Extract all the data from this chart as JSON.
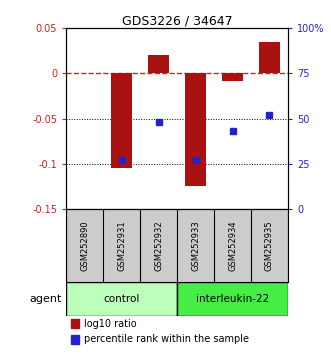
{
  "title": "GDS3226 / 34647",
  "samples": [
    "GSM252890",
    "GSM252931",
    "GSM252932",
    "GSM252933",
    "GSM252934",
    "GSM252935"
  ],
  "log10_ratio": [
    0.0,
    -0.105,
    0.02,
    -0.125,
    -0.008,
    0.035
  ],
  "percentile_rank": [
    null,
    27.0,
    48.0,
    27.0,
    43.0,
    52.0
  ],
  "ylim_left": [
    -0.15,
    0.05
  ],
  "ylim_right": [
    0,
    100
  ],
  "yticks_left": [
    -0.15,
    -0.1,
    -0.05,
    0.0,
    0.05
  ],
  "yticks_right": [
    0,
    25,
    50,
    75,
    100
  ],
  "ytick_labels_left": [
    "-0.15",
    "-0.1",
    "-0.05",
    "0",
    "0.05"
  ],
  "ytick_labels_right": [
    "0",
    "25",
    "50",
    "75",
    "100%"
  ],
  "bar_color": "#aa1111",
  "dot_color": "#2222cc",
  "zero_line_color": "#cc2222",
  "grid_line_color": "#000000",
  "control_color": "#bbffbb",
  "interleukin_color": "#44ee44",
  "sample_box_color": "#cccccc",
  "legend_bar_label": "log10 ratio",
  "legend_dot_label": "percentile rank within the sample",
  "agent_label": "agent",
  "control_label": "control",
  "interleukin_label": "interleukin-22"
}
